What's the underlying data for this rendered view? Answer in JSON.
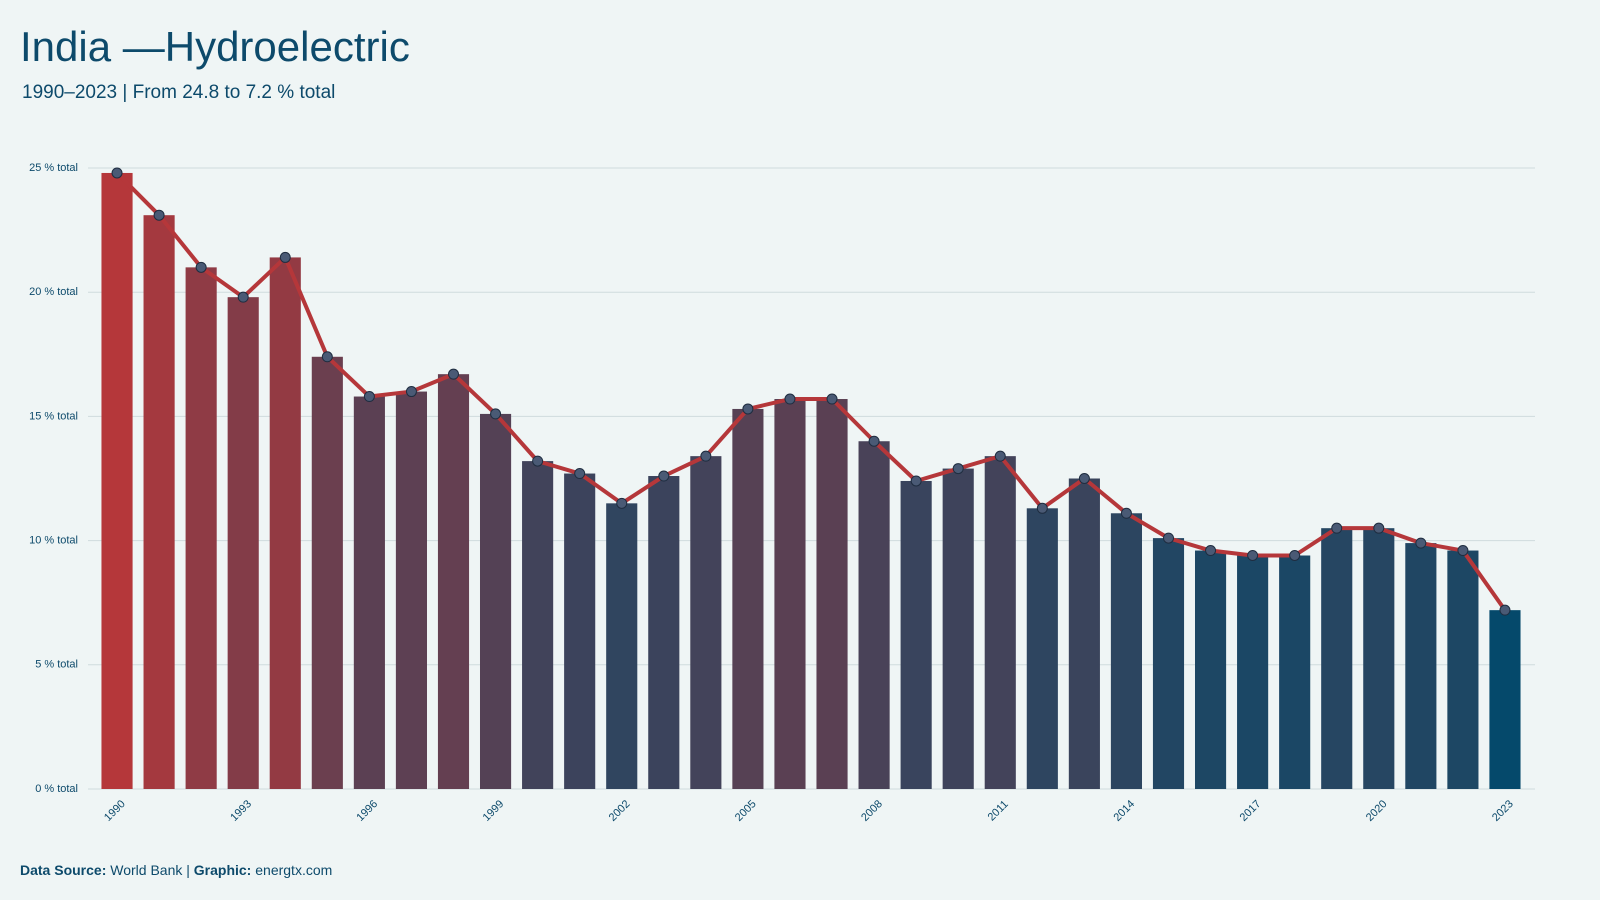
{
  "chart_data": {
    "type": "bar",
    "title": "India —Hydroelectric",
    "subtitle": "1990–2023 | From 24.8 to 7.2 % total",
    "categories": [
      "1990",
      null,
      null,
      "1993",
      null,
      null,
      "1996",
      null,
      null,
      "1999",
      null,
      null,
      "2002",
      null,
      null,
      "2005",
      null,
      null,
      "2008",
      null,
      null,
      "2011",
      null,
      null,
      "2014",
      null,
      null,
      "2017",
      null,
      null,
      "2020",
      null,
      null,
      "2023"
    ],
    "values": [
      24.8,
      23.1,
      21.0,
      19.8,
      21.4,
      17.4,
      15.8,
      16.0,
      16.7,
      15.1,
      13.2,
      12.7,
      11.5,
      12.6,
      13.4,
      15.3,
      15.7,
      15.7,
      14.0,
      12.4,
      12.9,
      13.4,
      11.3,
      12.5,
      11.1,
      10.1,
      9.6,
      9.4,
      9.4,
      10.5,
      10.5,
      9.9,
      9.6,
      7.2
    ],
    "colors": {
      "high": "#b5373a",
      "low": "#05496b"
    },
    "line": {
      "color": "#b5373a",
      "marker_color": "#4a5a75"
    },
    "ylim": [
      0,
      25
    ],
    "yticks": [
      {
        "value": 0,
        "label": "0 % total"
      },
      {
        "value": 5,
        "label": "5 % total"
      },
      {
        "value": 10,
        "label": "10 % total"
      },
      {
        "value": 15,
        "label": "15 % total"
      },
      {
        "value": 20,
        "label": "20 % total"
      },
      {
        "value": 25,
        "label": "25 % total"
      }
    ],
    "grid": true,
    "footer": {
      "source_label": "Data Source:",
      "source": "World Bank",
      "separator": "|",
      "credit_label": "Graphic:",
      "credit": "energtx.com"
    }
  }
}
